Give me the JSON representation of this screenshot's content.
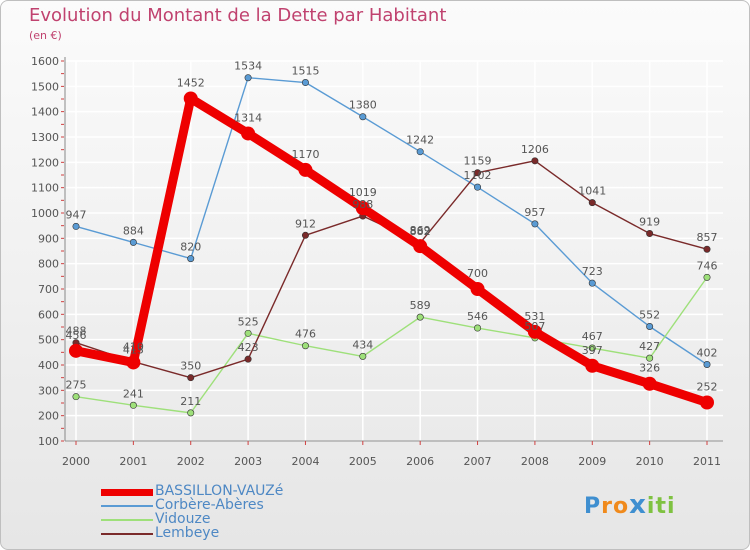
{
  "title": "Evolution du Montant de la Dette par Habitant",
  "subtitle": "(en €)",
  "chart_data": {
    "type": "line",
    "title": "Evolution du Montant de la Dette par Habitant",
    "subtitle": "(en €)",
    "x": [
      "2000",
      "2001",
      "2002",
      "2003",
      "2004",
      "2005",
      "2006",
      "2007",
      "2008",
      "2009",
      "2010",
      "2011"
    ],
    "ylim": [
      100,
      1600
    ],
    "yticks": [
      100,
      200,
      300,
      400,
      500,
      600,
      700,
      800,
      900,
      1000,
      1100,
      1200,
      1300,
      1400,
      1500,
      1600
    ],
    "grid": true,
    "legend_position": "bottom-left",
    "series": [
      {
        "name": "BASSILLON-VAUZé",
        "color": "#ee0000",
        "bold": true,
        "values": [
          456,
          410,
          1452,
          1314,
          1170,
          1019,
          869,
          700,
          531,
          397,
          326,
          252
        ]
      },
      {
        "name": "Corbère-Abères",
        "color": "#5a9bd4",
        "values": [
          947,
          884,
          820,
          1534,
          1515,
          1380,
          1242,
          1102,
          957,
          723,
          552,
          402
        ]
      },
      {
        "name": "Vidouze",
        "color": "#9ee07a",
        "values": [
          275,
          241,
          211,
          525,
          476,
          434,
          589,
          546,
          507,
          467,
          427,
          746
        ]
      },
      {
        "name": "Lembeye",
        "color": "#7a2a2a",
        "values": [
          488,
          413,
          350,
          423,
          912,
          988,
          882,
          1159,
          1206,
          1041,
          919,
          857
        ]
      }
    ],
    "point_labels": [
      [
        "456",
        "410",
        "1452",
        "1314",
        "1170",
        "1019",
        "869",
        "700",
        "531",
        "397",
        "326",
        "252"
      ],
      [
        "947",
        "884",
        "820",
        "1534",
        "1515",
        "1380",
        "1242",
        "1102",
        "957",
        "723",
        "552",
        "402"
      ],
      [
        "275",
        "241",
        "211",
        "525",
        "476",
        "434",
        "589",
        "546",
        "507",
        "467",
        "427",
        "746"
      ],
      [
        "488",
        "413",
        "350",
        "423",
        "912",
        "988",
        "882",
        "1159",
        "1206",
        "1041",
        "919",
        "857"
      ]
    ]
  },
  "logo": {
    "letters": [
      "P",
      "r",
      "o",
      "x",
      "i",
      "t",
      "i"
    ],
    "colors": [
      "#3f8fd0",
      "#f08a1c",
      "#f08a1c",
      "#3f8fd0",
      "#7fc241",
      "#7fc241",
      "#7fc241"
    ]
  }
}
